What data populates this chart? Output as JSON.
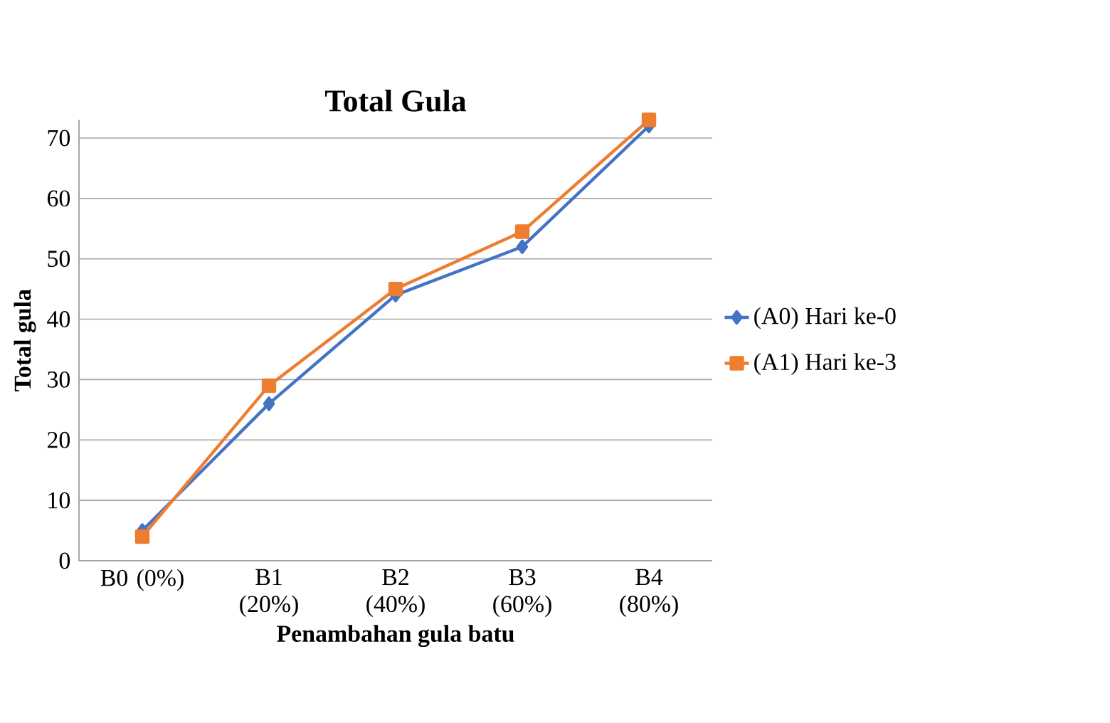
{
  "chart_data": {
    "type": "line",
    "title": "Total Gula",
    "xlabel": "Penambahan gula batu",
    "ylabel": "Total gula",
    "categories": [
      "B0 (0%)",
      "B1 (20%)",
      "B2 (40%)",
      "B3 (60%)",
      "B4 (80%)"
    ],
    "series": [
      {
        "name": "(A0) Hari ke-0",
        "color": "#4472c4",
        "marker": "diamond",
        "values": [
          5,
          26,
          44,
          52,
          72
        ]
      },
      {
        "name": "(A1) Hari ke-3",
        "color": "#ed7d31",
        "marker": "square",
        "values": [
          4,
          29,
          45,
          54.5,
          73
        ]
      }
    ],
    "ylim": [
      0,
      73
    ],
    "yticks": [
      0,
      10,
      20,
      30,
      40,
      50,
      60,
      70
    ],
    "grid": "y",
    "legend": "right",
    "line_style": "solid"
  }
}
